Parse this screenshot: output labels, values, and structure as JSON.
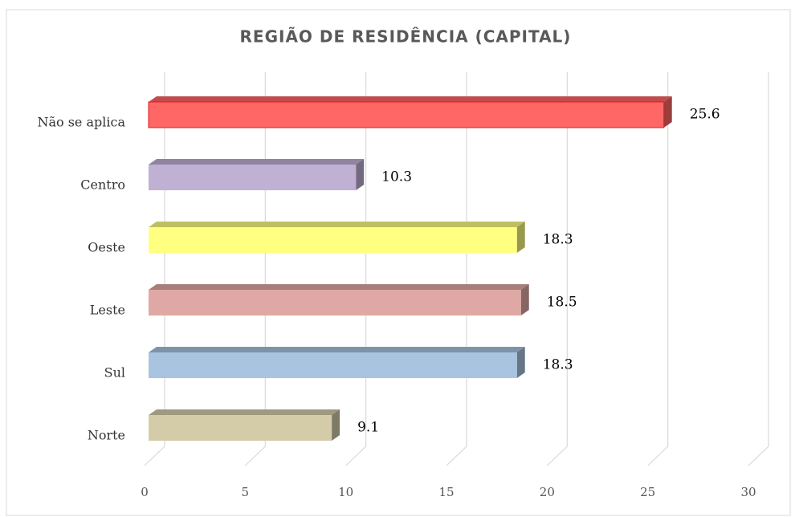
{
  "chart_data": {
    "type": "bar",
    "orientation": "horizontal",
    "title": "REGIÃO DE RESIDÊNCIA (CAPITAL)",
    "categories": [
      "Não se aplica",
      "Centro",
      "Oeste",
      "Leste",
      "Sul",
      "Norte"
    ],
    "values": [
      25.6,
      10.3,
      18.3,
      18.5,
      18.3,
      9.1
    ],
    "colors": [
      "#ff6666",
      "#c0b0d4",
      "#ffff80",
      "#e0a8a4",
      "#a8c4e0",
      "#d4cca8"
    ],
    "xlim": [
      0,
      30
    ],
    "xticks": [
      0,
      5,
      10,
      15,
      20,
      25,
      30
    ],
    "grid": true
  }
}
